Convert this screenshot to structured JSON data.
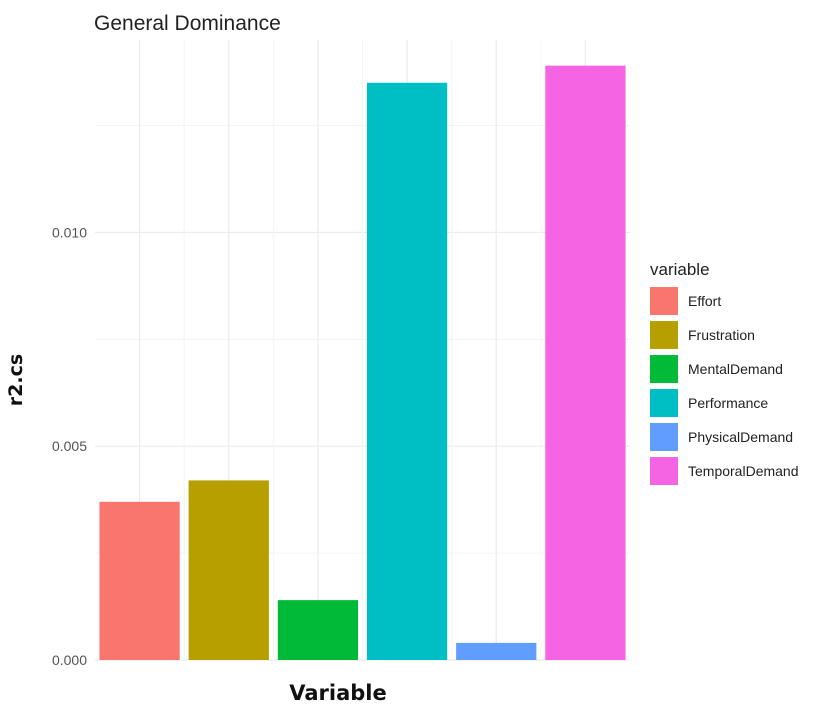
{
  "chart_data": {
    "type": "bar",
    "title": "General Dominance",
    "xlabel": "Variable",
    "ylabel": "r2.cs",
    "categories": [
      "Effort",
      "Frustration",
      "MentalDemand",
      "Performance",
      "PhysicalDemand",
      "TemporalDemand"
    ],
    "values": [
      0.0037,
      0.0042,
      0.0014,
      0.0135,
      0.0004,
      0.0139
    ],
    "colors": [
      "#F8766D",
      "#B79F00",
      "#00BA38",
      "#00BFC4",
      "#619CFF",
      "#F564E3"
    ],
    "ylim": [
      0,
      0.0145
    ],
    "yticks": [
      0.0,
      0.005,
      0.01
    ],
    "ytick_labels": [
      "0.000",
      "0.005",
      "0.010"
    ],
    "x_tick_labels_shown": false,
    "grid": true,
    "legend": {
      "title": "variable",
      "position": "right",
      "entries": [
        "Effort",
        "Frustration",
        "MentalDemand",
        "Performance",
        "PhysicalDemand",
        "TemporalDemand"
      ]
    }
  }
}
